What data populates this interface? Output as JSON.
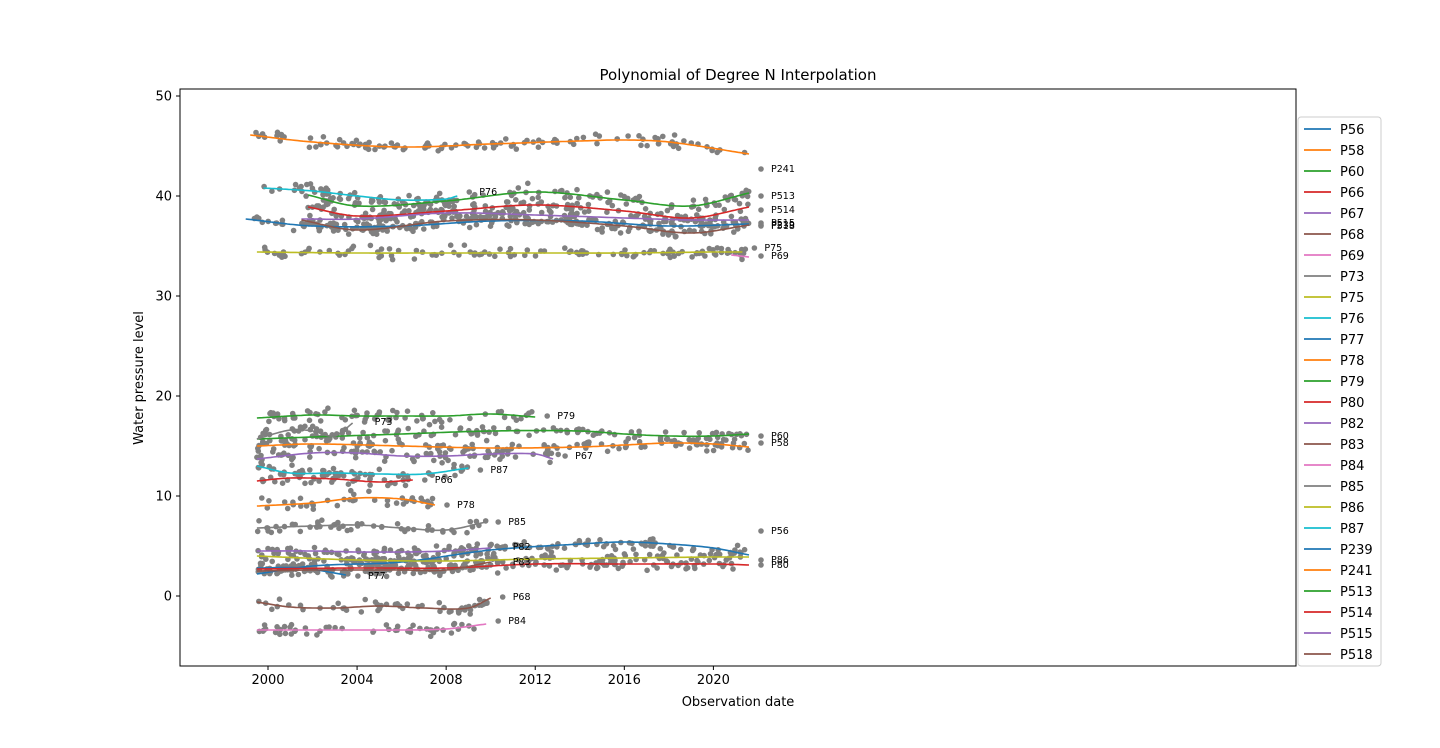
{
  "chart_data": {
    "type": "line",
    "title": "Polynomial of Degree N Interpolation",
    "xlabel": "Observation date",
    "ylabel": "Water pressure level",
    "xlim": [
      1998.0,
      2023.0
    ],
    "ylim": [
      -7,
      50.5
    ],
    "x_ticks": [
      2000,
      2004,
      2008,
      2012,
      2016,
      2020
    ],
    "y_ticks": [
      0,
      10,
      20,
      30,
      40,
      50
    ],
    "legend_position": "right (outside plot)",
    "grid": false,
    "observation_color": "#808080",
    "series": [
      {
        "name": "P56",
        "color": "#1f77b4",
        "x": [
          1999.5,
          2002,
          2006,
          2010,
          2014,
          2016,
          2018,
          2020,
          2021.6
        ],
        "y": [
          2.2,
          3.0,
          3.4,
          4.6,
          5.2,
          5.4,
          5.2,
          4.8,
          4.1
        ],
        "label_y": 6.5
      },
      {
        "name": "P58",
        "color": "#ff7f0e",
        "x": [
          1999.5,
          2002,
          2006,
          2010,
          2014,
          2016,
          2018,
          2020,
          2021.6
        ],
        "y": [
          15.0,
          15.2,
          15.0,
          14.8,
          14.9,
          15.1,
          15.3,
          15.2,
          14.9
        ],
        "label_y": 15.3
      },
      {
        "name": "P60",
        "color": "#2ca02c",
        "x": [
          1999.5,
          2002,
          2006,
          2010,
          2014,
          2016,
          2018,
          2020,
          2021.6
        ],
        "y": [
          15.7,
          15.9,
          16.2,
          16.5,
          16.5,
          16.2,
          16.0,
          16.0,
          16.2
        ],
        "label_y": 16.0
      },
      {
        "name": "P66",
        "color": "#d62728",
        "x": [
          1999.5,
          2001,
          2003,
          2005,
          2006.5
        ],
        "y": [
          11.5,
          11.8,
          11.7,
          11.4,
          11.6
        ],
        "label_y": 11.6
      },
      {
        "name": "P67",
        "color": "#9467bd",
        "x": [
          1999.5,
          2002,
          2004,
          2006,
          2008,
          2010,
          2012,
          2012.8
        ],
        "y": [
          13.7,
          14.3,
          14.3,
          14.0,
          14.0,
          14.2,
          14.2,
          13.7
        ],
        "label_y": 14.0
      },
      {
        "name": "P68",
        "color": "#8c564b",
        "x": [
          1999.5,
          2001,
          2003,
          2005,
          2007,
          2009,
          2010
        ],
        "y": [
          -0.6,
          -1.1,
          -1.2,
          -1.0,
          -1.2,
          -1.2,
          -0.2
        ],
        "label_y": -0.1
      },
      {
        "name": "P69",
        "color": "#e377c2",
        "x": [
          2020.8,
          2021.2,
          2021.6
        ],
        "y": [
          34.1,
          34.0,
          33.9
        ],
        "label_y": 34.0
      },
      {
        "name": "P73",
        "color": "#7f7f7f",
        "x": [
          1999.5,
          2001,
          2002,
          2003,
          2003.8
        ],
        "y": [
          15.7,
          16.6,
          16.5,
          16.0,
          17.3
        ],
        "label_y": 17.4
      },
      {
        "name": "P75",
        "color": "#bcbd22",
        "x": [
          1999.5,
          2004,
          2008,
          2012,
          2016,
          2020,
          2021.3
        ],
        "y": [
          34.4,
          34.3,
          34.3,
          34.3,
          34.3,
          34.4,
          34.4
        ],
        "label_y": 34.8
      },
      {
        "name": "P76",
        "color": "#17becf",
        "x": [
          1999.8,
          2002,
          2004,
          2006,
          2008,
          2008.5
        ],
        "y": [
          40.8,
          40.5,
          40.0,
          39.6,
          39.7,
          40.0
        ],
        "label_y": 40.4
      },
      {
        "name": "P77",
        "color": "#1f77b4",
        "x": [
          1999.5,
          2001.5,
          2003.5
        ],
        "y": [
          2.8,
          2.8,
          2.1
        ],
        "label_y": 2.0
      },
      {
        "name": "P78",
        "color": "#ff7f0e",
        "x": [
          1999.5,
          2002,
          2004,
          2006,
          2007.5
        ],
        "y": [
          9.0,
          9.3,
          9.8,
          9.7,
          9.1
        ],
        "label_y": 9.1
      },
      {
        "name": "P79",
        "color": "#2ca02c",
        "x": [
          1999.5,
          2002,
          2004,
          2006,
          2008,
          2010,
          2012
        ],
        "y": [
          17.8,
          18.1,
          18.0,
          18.0,
          18.0,
          18.2,
          17.9
        ],
        "label_y": 18.0
      },
      {
        "name": "P80",
        "color": "#d62728",
        "x": [
          1999.5,
          2004,
          2008,
          2012,
          2016,
          2020,
          2021.6
        ],
        "y": [
          2.7,
          2.8,
          2.8,
          3.2,
          3.2,
          3.2,
          3.1
        ],
        "label_y": 3.1
      },
      {
        "name": "P82",
        "color": "#9467bd",
        "x": [
          1999.5,
          2002,
          2004,
          2006,
          2008,
          2010
        ],
        "y": [
          4.5,
          4.5,
          4.4,
          4.4,
          4.5,
          4.8
        ],
        "label_y": 4.9
      },
      {
        "name": "P83",
        "color": "#8c564b",
        "x": [
          1999.5,
          2002,
          2004,
          2006,
          2008,
          2010
        ],
        "y": [
          2.5,
          2.6,
          2.6,
          2.6,
          2.6,
          3.4
        ],
        "label_y": 3.4
      },
      {
        "name": "P84",
        "color": "#e377c2",
        "x": [
          1999.5,
          2002,
          2004,
          2006,
          2008,
          2009.8
        ],
        "y": [
          -3.4,
          -3.4,
          -3.4,
          -3.4,
          -3.3,
          -2.8
        ],
        "label_y": -2.5
      },
      {
        "name": "P85",
        "color": "#7f7f7f",
        "x": [
          1999.5,
          2002,
          2004,
          2006,
          2008,
          2009.8
        ],
        "y": [
          6.8,
          7.0,
          7.1,
          6.8,
          6.6,
          7.4
        ],
        "label_y": 7.4
      },
      {
        "name": "P86",
        "color": "#bcbd22",
        "x": [
          1999.5,
          2004,
          2008,
          2012,
          2016,
          2020,
          2021.6
        ],
        "y": [
          4.0,
          3.6,
          3.5,
          3.7,
          3.8,
          3.9,
          3.9
        ],
        "label_y": 3.6
      },
      {
        "name": "P87",
        "color": "#17becf",
        "x": [
          1999.5,
          2001,
          2003,
          2005,
          2007,
          2009
        ],
        "y": [
          13.0,
          12.3,
          12.3,
          12.2,
          12.2,
          12.8
        ],
        "label_y": 12.6
      },
      {
        "name": "P239",
        "color": "#1f77b4",
        "x": [
          1999.0,
          2002,
          2006,
          2010,
          2014,
          2018,
          2021.6
        ],
        "y": [
          37.7,
          37.0,
          37.0,
          37.5,
          37.5,
          37.0,
          37.2
        ],
        "label_y": 37.1
      },
      {
        "name": "P241",
        "color": "#ff7f0e",
        "x": [
          1999.2,
          2002,
          2006,
          2010,
          2014,
          2016,
          2018,
          2021.6
        ],
        "y": [
          46.1,
          45.4,
          44.9,
          45.2,
          45.5,
          45.6,
          45.4,
          44.2
        ],
        "label_y": 42.7
      },
      {
        "name": "P513",
        "color": "#2ca02c",
        "x": [
          2001.8,
          2004,
          2008,
          2012,
          2016,
          2019,
          2021.6
        ],
        "y": [
          40.1,
          39.0,
          39.5,
          40.4,
          39.6,
          39.0,
          40.3
        ],
        "label_y": 40.0
      },
      {
        "name": "P514",
        "color": "#d62728",
        "x": [
          2001.8,
          2004,
          2008,
          2012,
          2016,
          2019,
          2021.6
        ],
        "y": [
          38.9,
          38.0,
          38.5,
          39.1,
          38.5,
          37.8,
          38.9
        ],
        "label_y": 38.6
      },
      {
        "name": "P515",
        "color": "#9467bd",
        "x": [
          2001.5,
          2004,
          2008,
          2012,
          2016,
          2019,
          2021.6
        ],
        "y": [
          37.7,
          37.7,
          38.3,
          38.1,
          37.8,
          37.6,
          37.6
        ],
        "label_y": 37.3
      },
      {
        "name": "P518",
        "color": "#8c564b",
        "x": [
          2001.5,
          2004,
          2008,
          2012,
          2016,
          2019,
          2021.6
        ],
        "y": [
          37.6,
          36.6,
          37.5,
          37.6,
          37.0,
          36.3,
          37.1
        ],
        "label_y": 37.0
      }
    ]
  }
}
